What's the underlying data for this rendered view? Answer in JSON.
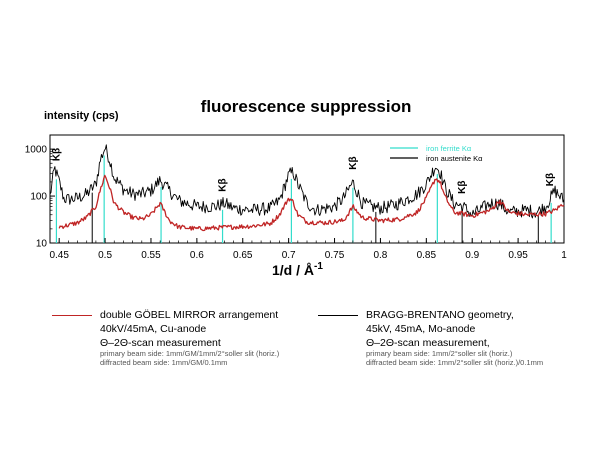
{
  "chart_data": {
    "type": "line",
    "title": "fluorescence suppression",
    "ylabel": "intensity (cps)",
    "xlabel": "1/d  / Å",
    "xlabel_exp": "-1",
    "xlim": [
      0.44,
      1.0
    ],
    "ylim": [
      10,
      2000
    ],
    "yscale": "log",
    "x_ticks": [
      "0.45",
      "0.5",
      "0.55",
      "0.6",
      "0.65",
      "0.7",
      "0.75",
      "0.8",
      "0.85",
      "0.9",
      "0.95",
      "1"
    ],
    "x_tick_values": [
      0.45,
      0.5,
      0.55,
      0.6,
      0.65,
      0.7,
      0.75,
      0.8,
      0.85,
      0.9,
      0.95,
      1.0
    ],
    "y_ticks": [
      "1000",
      "100",
      "10"
    ],
    "y_tick_values": [
      1000,
      100,
      10
    ],
    "grid": false,
    "inset_legend": [
      {
        "label": "iron ferrite Kα",
        "color": "#33ddcc"
      },
      {
        "label": "iron austenite Kα",
        "color": "#000000"
      }
    ],
    "kbeta_label": "Kβ",
    "kbeta_positions": [
      0.447,
      0.628,
      0.77,
      0.889,
      0.985
    ],
    "ferrite_lines": [
      0.447,
      0.499,
      0.561,
      0.628,
      0.703,
      0.77,
      0.862,
      0.986
    ],
    "austenite_lines": [
      0.486,
      0.795,
      0.889,
      0.972
    ],
    "series": [
      {
        "color": "#000000",
        "baseline": 60,
        "x": [
          0.44,
          0.445,
          0.45,
          0.455,
          0.46,
          0.47,
          0.48,
          0.49,
          0.495,
          0.5,
          0.505,
          0.51,
          0.52,
          0.53,
          0.54,
          0.55,
          0.56,
          0.57,
          0.58,
          0.6,
          0.62,
          0.63,
          0.64,
          0.66,
          0.68,
          0.69,
          0.7,
          0.705,
          0.71,
          0.72,
          0.73,
          0.75,
          0.76,
          0.77,
          0.78,
          0.79,
          0.8,
          0.81,
          0.82,
          0.84,
          0.85,
          0.86,
          0.865,
          0.87,
          0.88,
          0.89,
          0.9,
          0.92,
          0.93,
          0.94,
          0.96,
          0.97,
          0.98,
          0.99,
          1.0
        ],
        "y": [
          100,
          400,
          200,
          90,
          85,
          90,
          110,
          180,
          600,
          1100,
          600,
          250,
          140,
          110,
          110,
          130,
          220,
          130,
          80,
          60,
          60,
          70,
          55,
          50,
          55,
          80,
          280,
          330,
          180,
          70,
          50,
          60,
          90,
          200,
          70,
          60,
          55,
          60,
          70,
          110,
          180,
          440,
          330,
          160,
          70,
          60,
          40,
          70,
          70,
          45,
          50,
          45,
          60,
          130,
          80
        ]
      },
      {
        "color": "#c02525",
        "baseline": 20,
        "x": [
          0.45,
          0.46,
          0.47,
          0.48,
          0.49,
          0.495,
          0.5,
          0.505,
          0.51,
          0.52,
          0.53,
          0.54,
          0.55,
          0.56,
          0.57,
          0.58,
          0.6,
          0.62,
          0.64,
          0.66,
          0.68,
          0.69,
          0.7,
          0.705,
          0.71,
          0.72,
          0.74,
          0.76,
          0.77,
          0.78,
          0.8,
          0.82,
          0.84,
          0.85,
          0.86,
          0.865,
          0.87,
          0.88,
          0.89,
          0.9,
          0.92,
          0.93,
          0.94,
          0.96,
          0.98,
          0.99,
          1.0
        ],
        "y": [
          22,
          24,
          27,
          35,
          60,
          140,
          280,
          150,
          70,
          45,
          35,
          32,
          40,
          70,
          30,
          22,
          20,
          21,
          22,
          23,
          26,
          40,
          90,
          75,
          40,
          28,
          27,
          30,
          60,
          35,
          30,
          32,
          45,
          90,
          240,
          200,
          100,
          45,
          42,
          38,
          50,
          80,
          45,
          40,
          42,
          50,
          70
        ]
      }
    ]
  },
  "legend": {
    "left": {
      "line_color": "#c02525",
      "lines": [
        "double GÖBEL MIRROR arrangement",
        "40kV/45mA, Cu-anode",
        "Θ–2Θ-scan measurement"
      ],
      "notes": [
        "primary beam side: 1mm/GM/1mm/2°soller slit (horiz.)",
        "diffracted beam side: 1mm/GM/0.1mm"
      ]
    },
    "right": {
      "line_color": "#000000",
      "lines": [
        "BRAGG-BRENTANO geometry,",
        "45kV, 45mA, Mo-anode",
        "Θ–2Θ-scan measurement,"
      ],
      "notes": [
        "primary beam side: 1mm/2°soller slit (horiz.)",
        "diffracted beam side: 1mm/2°soller slit (horiz.)/0.1mm"
      ]
    }
  }
}
